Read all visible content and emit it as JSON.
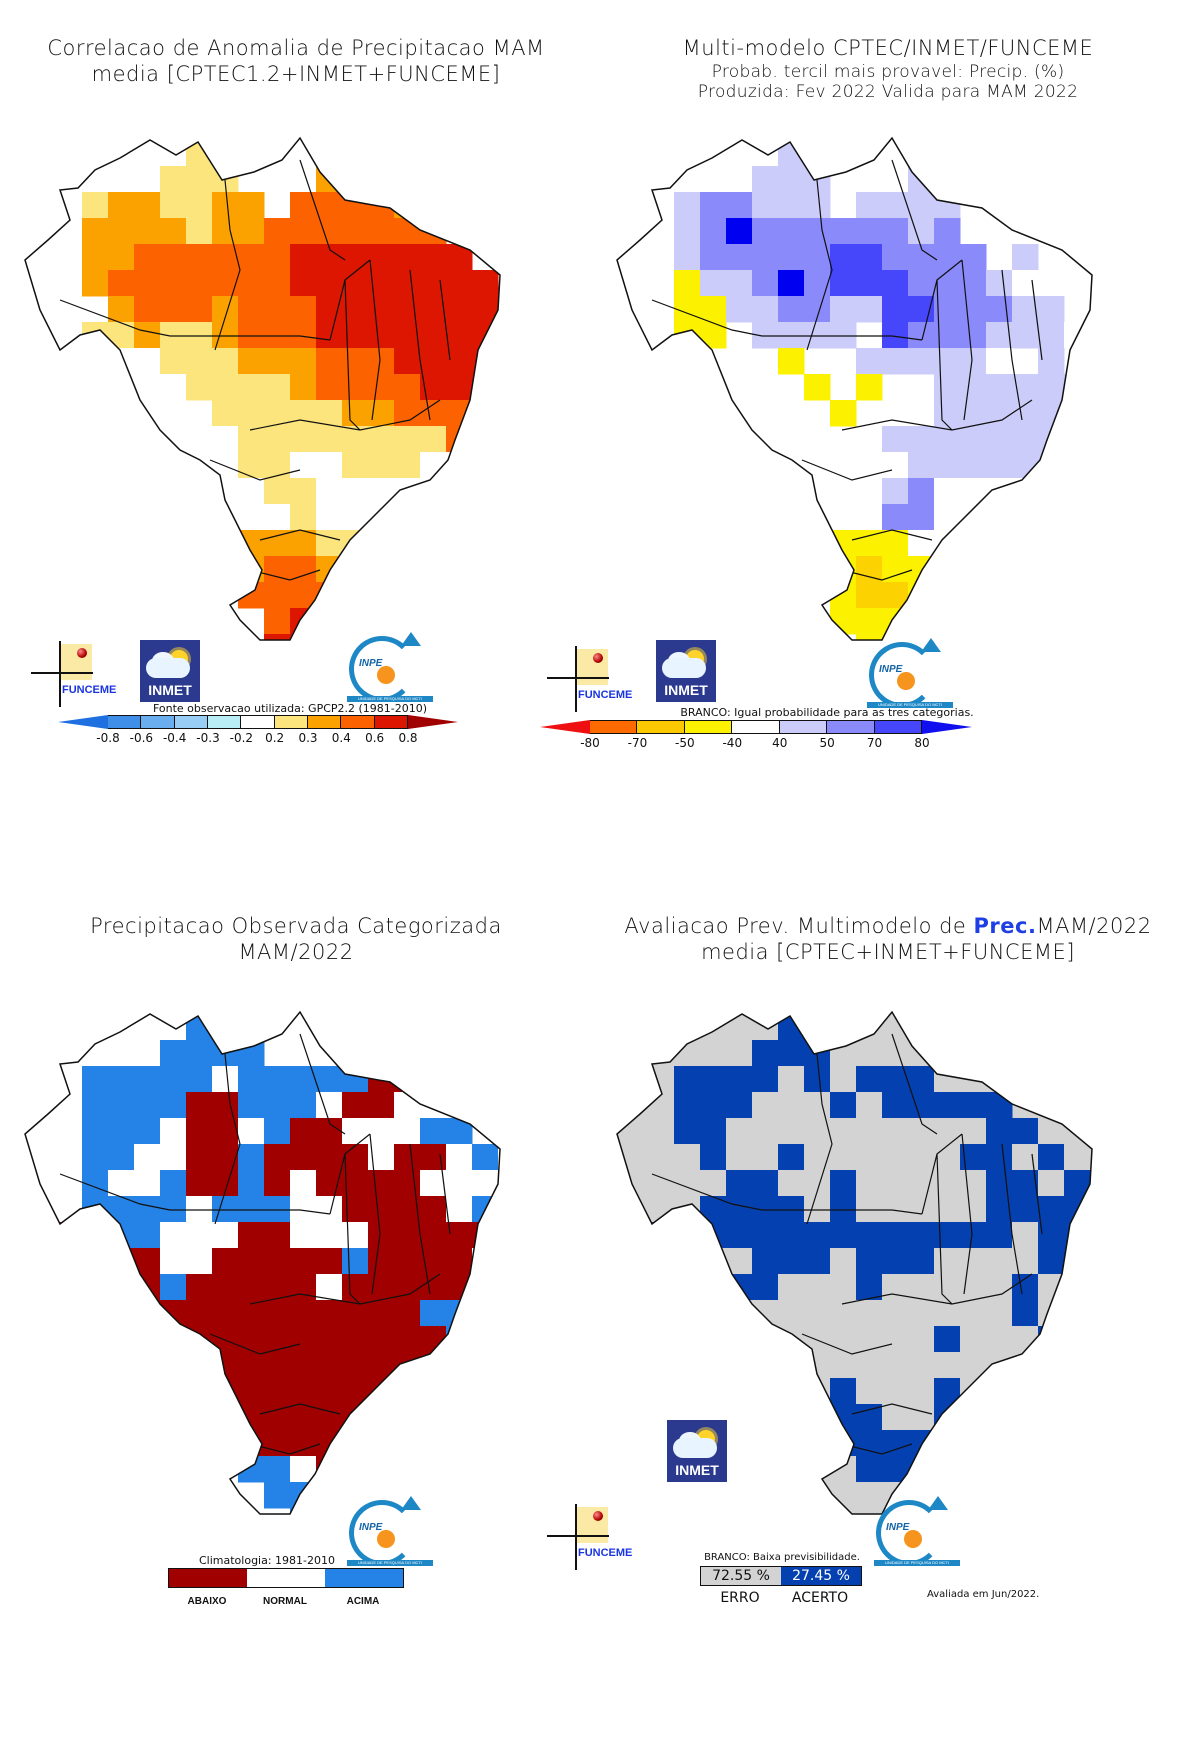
{
  "panels": [
    {
      "id": "correlation",
      "title_lines": [
        "Correlacao de Anomalia de Precipitacao MAM",
        "media [CPTEC1.2+INMET+FUNCEME]"
      ],
      "colorbar_note": "Fonte observacao utilizada: GPCP2.2 (1981-2010)",
      "colorbar": {
        "ticks": [
          "-0.8",
          "-0.6",
          "-0.4",
          "-0.3",
          "-0.2",
          "0.2",
          "0.3",
          "0.4",
          "0.6",
          "0.8"
        ],
        "low_arrow_color": "#1e6fe0",
        "high_arrow_color": "#a00000",
        "segments": [
          "#3f8ee8",
          "#6aaef0",
          "#98cdf6",
          "#b9eef7",
          "#ffffff",
          "#fde57d",
          "#fca200",
          "#fc6200",
          "#dc1600"
        ]
      },
      "palette": {
        "w": "#ffffff",
        "y": "#fde57d",
        "o": "#fca200",
        "r": "#fc6200",
        "d": "#dc1600",
        "c": "#b9eef7"
      }
    },
    {
      "id": "forecast",
      "title_lines": [
        "Multi-modelo CPTEC/INMET/FUNCEME",
        "Probab. tercil mais provavel: Precip. (%)",
        "Produzida: Fev 2022  Valida para MAM 2022"
      ],
      "colorbar_note": "BRANCO: Igual probabilidade para as tres categorias.",
      "colorbar": {
        "ticks": [
          "-80",
          "-70",
          "-50",
          "-40",
          "40",
          "50",
          "70",
          "80"
        ],
        "low_arrow_color": "#ee1010",
        "high_arrow_color": "#1010ee",
        "segments": [
          "#fc6a00",
          "#fcc800",
          "#fcf200",
          "#ffffff",
          "#ccccfa",
          "#8a8afa",
          "#4646fa"
        ]
      },
      "palette": {
        "w": "#ffffff",
        "l": "#ccccfa",
        "m": "#8a8afa",
        "b": "#4646fa",
        "k": "#0000f0",
        "y": "#fcf200",
        "g": "#fcd200"
      }
    },
    {
      "id": "observed",
      "title_lines": [
        "Precipitacao Observada Categorizada",
        "MAM/2022"
      ],
      "colorbar_note": "Climatologia: 1981-2010",
      "categories": [
        {
          "label": "ABAIXO",
          "color": "#a00000"
        },
        {
          "label": "NORMAL",
          "color": "#ffffff"
        },
        {
          "label": "ACIMA",
          "color": "#2582e6"
        }
      ],
      "palette": {
        "w": "#ffffff",
        "r": "#a00000",
        "b": "#2582e6"
      }
    },
    {
      "id": "evaluation",
      "title_prefix": "Avaliacao Prev. Multimodelo de ",
      "title_highlight": "Prec.",
      "title_suffix": "MAM/2022",
      "title_line2": "media [CPTEC+INMET+FUNCEME]",
      "colorbar_note": "BRANCO: Baixa previsibilidade.",
      "scores": [
        {
          "label": "ERRO",
          "value": "72.55 %",
          "color": "#d3d3d3",
          "text_color": "#111111"
        },
        {
          "label": "ACERTO",
          "value": "27.45 %",
          "color": "#0540b0",
          "text_color": "#ffffff"
        }
      ],
      "evaluated": "Avaliada em Jun/2022.",
      "palette": {
        "g": "#d3d3d3",
        "b": "#0540b0"
      }
    }
  ],
  "logos": {
    "funceme": "FUNCEME",
    "inmet": "INMET",
    "inpe": "INPE",
    "inpe_sub": "UNIDADE DE PESQUISA DO MCTI"
  },
  "grids": {
    "correlation": [
      "......yy..........",
      ".....yyy...oo.....",
      "..yooyyoo.rrrro...",
      "..ooooyoorrrrrrr..",
      "..oorrrrrrddddddd.",
      "..orrrrrrrdddddddd",
      "...orrrorrrdddddddd",
      "..yyoyyorrrdddddddd",
      ".wwwwyyyooorrrddddd",
      ".wywwwyyyyorrrrdddd",
      ".woyww.yyyyyoorrrd.",
      "..y...wwyyyyyyyyrr.",
      "......wwyywwyyywwy.",
      ".......wwyywwwwwwy.",
      ".......wwwywwwwwyy.",
      "........oooyywwwyw.",
      "........orrooyywwy.",
      "........rrrrrooy...",
      ".........rddddr....",
      ".........dddddr....",
      "..........rrrr.....",
      ".........orrro.....",
      "........ooyyoo.....",
      ".........yyw......."
    ],
    "forecast": [
      "......ll....l.....",
      ".....lll...lm.....",
      "..lmmlll.llll.....",
      "..lmkmmmmmmlm.....",
      "..lmmmmmbbmmmm.l..",
      "..yllmkmbbbmmmlw..",
      "..yyllmmllbbmmmll.",
      "..yy.llll.bmmmlllw",
      "......y..lllllw.l.",
      ".......y.y..lllllll",
      "........y..wlllllm.",
      "..........llllllll.",
      "..........wlllllll.",
      "..........lmwwwwll.",
      "..........mmwwwwl..",
      "........yyywwwwl...",
      "........ygyyyyy....",
      "........yggyggyy...",
      "........yyyyggyy...",
      ".........yygyyy....",
      "..........yyyy.....",
      "..........yyy......",
      "..................."
    ],
    "observed": [
      "......bb...........",
      ".....bbbb...rr.....",
      "..bbbbbwbbbbbrr....",
      "..bbbbrrbbbwrrw....",
      "..bbbwrrwbrrwwwbb..",
      "..bbwwrrbrrrrwrrwbw",
      "..bwwbrrbrwrrrrwwwb",
      "..bbbbwbbbwwrrrrwbb",
      ".rrbbwwwrrwwwrrrrrwb",
      ".rrrrwwrrrrrbrrrrwrw",
      "..rrrbrrrrrwrrrrrbrr",
      "....rrrrrrrrrrrbbrr.",
      "....rrrrrrrrrrrrbbr.",
      "....rrrrrrrrrrrrrr..",
      ".......rrrrrrrrrrr..",
      ".......rrrrrrrrrrr..",
      "........rrrrrrrrrr..",
      "........bbwrrrrrr...",
      ".........bbwrrrrw...",
      "..........bbwrr.....",
      "..........bbbb......",
      ".........wbbb.......",
      ".........wwbb......."
    ],
    "evaluation": [
      "......bb...........",
      ".....bbbgg.........",
      "..bbbbgbgbbbgg.....",
      "..bbbgggbgbbbbb....",
      "..bbggggggggggbbg..",
      "..gbggbggggggbbgbg.",
      "..ggbbggbgggggbbgbb",
      "..gbbbbgbgggggbbbbb",
      ".bgbbbbbbbbbbbbgbbbb",
      ".ggggbbbgbbbggggbbgb",
      "....bbgggbgggggbgg.",
      "....gggggggggggbgg.",
      "....ggggggggbgggbbg.",
      "....gggggggggggggg..",
      ".......gbgggbgggg...",
      ".......bbbggbbggg...",
      "........bbbbbbbbb...",
      "........gbbbbbbbg...",
      ".........ggggbbbg...",
      "..........gggbg.....",
      "..........ggggg.....",
      ".........bbggg......",
      ".........bbbg......."
    ]
  }
}
